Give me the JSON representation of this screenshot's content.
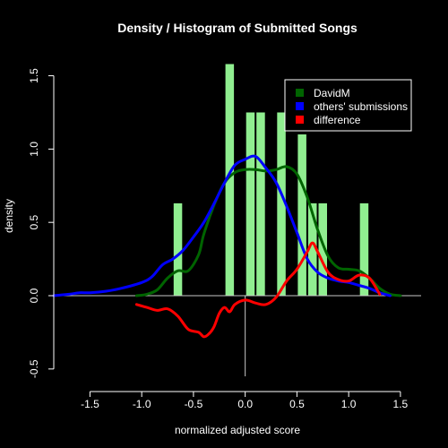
{
  "chart_data": {
    "type": "bar",
    "title": "Density / Histogram of Submitted Songs",
    "xlabel": "normalized adjusted score",
    "ylabel": "density",
    "xlim": [
      -1.85,
      1.7
    ],
    "ylim": [
      -0.55,
      1.65
    ],
    "x_ticks": [
      "-1.5",
      "-1.0",
      "-0.5",
      "0.0",
      "0.5",
      "1.0",
      "1.5"
    ],
    "y_ticks": [
      "-0.5",
      "0.0",
      "0.5",
      "1.0",
      "1.5"
    ],
    "grid": false,
    "legend_position": "top-right",
    "histogram": {
      "color": "#90EE90",
      "bin_width": 0.1,
      "bins": [
        {
          "from": -0.7,
          "to": -0.6,
          "value": 0.63
        },
        {
          "from": -0.2,
          "to": -0.1,
          "value": 1.58
        },
        {
          "from": 0.0,
          "to": 0.1,
          "value": 1.25
        },
        {
          "from": 0.1,
          "to": 0.2,
          "value": 1.25
        },
        {
          "from": 0.3,
          "to": 0.4,
          "value": 1.25
        },
        {
          "from": 0.5,
          "to": 0.6,
          "value": 1.1
        },
        {
          "from": 0.6,
          "to": 0.7,
          "value": 0.63
        },
        {
          "from": 0.7,
          "to": 0.8,
          "value": 0.63
        },
        {
          "from": 1.1,
          "to": 1.2,
          "value": 0.63
        }
      ]
    },
    "series": [
      {
        "name": "DavidM",
        "color": "#006400",
        "x": [
          -1.05,
          -0.95,
          -0.85,
          -0.75,
          -0.65,
          -0.55,
          -0.45,
          -0.4,
          -0.3,
          -0.2,
          -0.1,
          0.0,
          0.1,
          0.2,
          0.3,
          0.4,
          0.5,
          0.6,
          0.7,
          0.8,
          0.9,
          1.0,
          1.1,
          1.2,
          1.3,
          1.4,
          1.5
        ],
        "y": [
          0.0,
          0.01,
          0.04,
          0.12,
          0.17,
          0.17,
          0.28,
          0.42,
          0.62,
          0.77,
          0.84,
          0.86,
          0.86,
          0.85,
          0.86,
          0.88,
          0.83,
          0.67,
          0.45,
          0.27,
          0.19,
          0.18,
          0.17,
          0.12,
          0.05,
          0.01,
          0.0
        ]
      },
      {
        "name": "others' submissions",
        "color": "#0000FF",
        "x": [
          -1.85,
          -1.7,
          -1.6,
          -1.5,
          -1.35,
          -1.2,
          -1.0,
          -0.9,
          -0.8,
          -0.7,
          -0.6,
          -0.5,
          -0.4,
          -0.3,
          -0.2,
          -0.1,
          0.0,
          0.1,
          0.2,
          0.3,
          0.4,
          0.5,
          0.6,
          0.7,
          0.8,
          0.9,
          1.0,
          1.1,
          1.2,
          1.3,
          1.4
        ],
        "y": [
          0.0,
          0.01,
          0.02,
          0.02,
          0.03,
          0.05,
          0.09,
          0.13,
          0.21,
          0.25,
          0.31,
          0.4,
          0.5,
          0.63,
          0.77,
          0.89,
          0.93,
          0.95,
          0.87,
          0.77,
          0.61,
          0.43,
          0.25,
          0.16,
          0.12,
          0.1,
          0.09,
          0.07,
          0.05,
          0.02,
          0.0
        ]
      },
      {
        "name": "difference",
        "color": "#FF0000",
        "x": [
          -1.05,
          -0.95,
          -0.85,
          -0.75,
          -0.65,
          -0.55,
          -0.45,
          -0.4,
          -0.35,
          -0.3,
          -0.25,
          -0.2,
          -0.15,
          -0.1,
          0.0,
          0.1,
          0.2,
          0.3,
          0.4,
          0.5,
          0.6,
          0.65,
          0.7,
          0.8,
          0.9,
          1.0,
          1.1,
          1.2,
          1.3
        ],
        "y": [
          -0.06,
          -0.08,
          -0.1,
          -0.09,
          -0.14,
          -0.23,
          -0.25,
          -0.28,
          -0.26,
          -0.21,
          -0.12,
          -0.08,
          -0.11,
          -0.06,
          -0.03,
          -0.05,
          -0.06,
          -0.01,
          0.1,
          0.18,
          0.3,
          0.36,
          0.3,
          0.16,
          0.11,
          0.1,
          0.14,
          0.12,
          0.01
        ]
      }
    ]
  }
}
